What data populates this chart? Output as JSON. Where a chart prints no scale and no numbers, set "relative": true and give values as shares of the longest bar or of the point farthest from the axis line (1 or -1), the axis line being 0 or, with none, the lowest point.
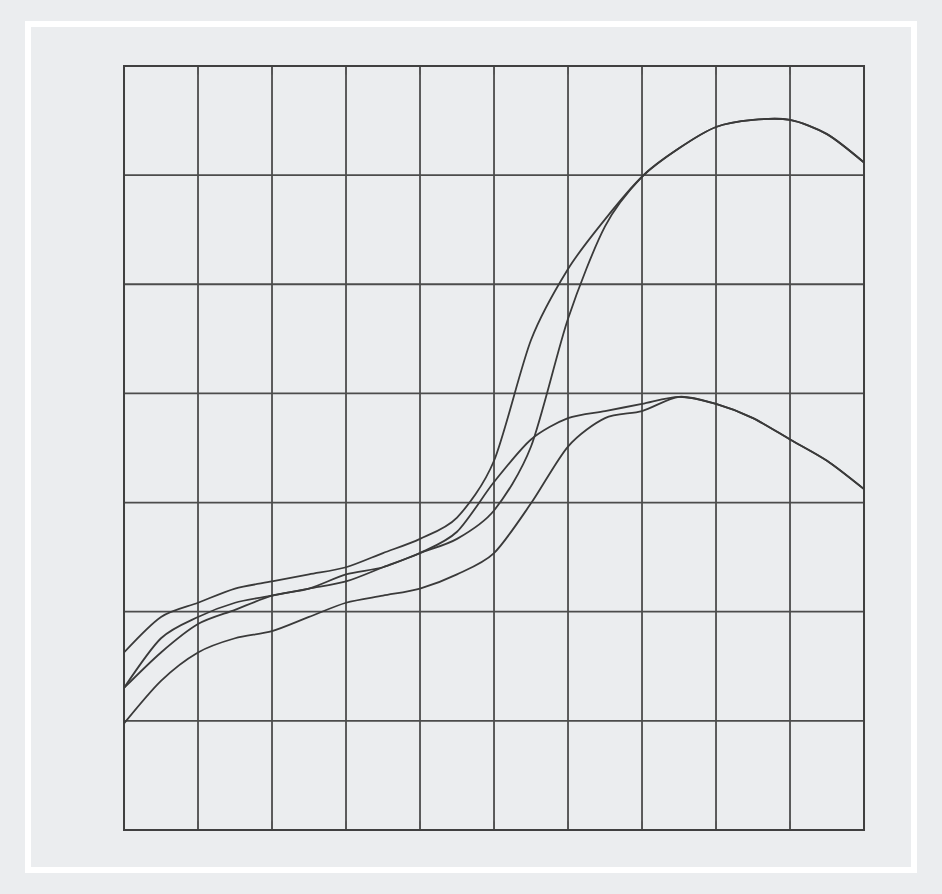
{
  "chart_data": {
    "type": "line",
    "relative": true,
    "grid": true,
    "marker": "none",
    "line_style": "solid",
    "categories": [
      null,
      null,
      null,
      null,
      null,
      null,
      null,
      null,
      null,
      null,
      null,
      null,
      null,
      null,
      null,
      null,
      null,
      null,
      null,
      null,
      null
    ],
    "series": [
      {
        "color": "#3a3a3a",
        "values": [
          0.25,
          0.3,
          0.32,
          0.34,
          0.35,
          0.36,
          0.37,
          0.39,
          0.41,
          0.44,
          0.52,
          0.69,
          0.79,
          0.86,
          0.92,
          0.96,
          0.99,
          1,
          1,
          0.98,
          0.94
        ]
      },
      {
        "color": "#3a3a3a",
        "values": [
          0.2,
          0.25,
          0.29,
          0.31,
          0.33,
          0.34,
          0.36,
          0.37,
          0.39,
          0.41,
          0.45,
          0.54,
          0.72,
          0.85,
          0.92,
          0.96,
          0.99,
          1,
          1,
          0.98,
          0.94
        ]
      },
      {
        "color": "#3a3a3a",
        "values": [
          0.2,
          0.27,
          0.3,
          0.32,
          0.33,
          0.34,
          0.35,
          0.37,
          0.39,
          0.42,
          0.49,
          0.55,
          0.58,
          0.59,
          0.6,
          0.61,
          0.6,
          0.58,
          0.55,
          0.52,
          0.48
        ]
      },
      {
        "color": "#3a3a3a",
        "values": [
          0.15,
          0.21,
          0.25,
          0.27,
          0.28,
          0.3,
          0.32,
          0.33,
          0.34,
          0.36,
          0.39,
          0.46,
          0.54,
          0.58,
          0.59,
          0.61,
          0.6,
          0.58,
          0.55,
          0.52,
          0.48
        ]
      }
    ]
  }
}
